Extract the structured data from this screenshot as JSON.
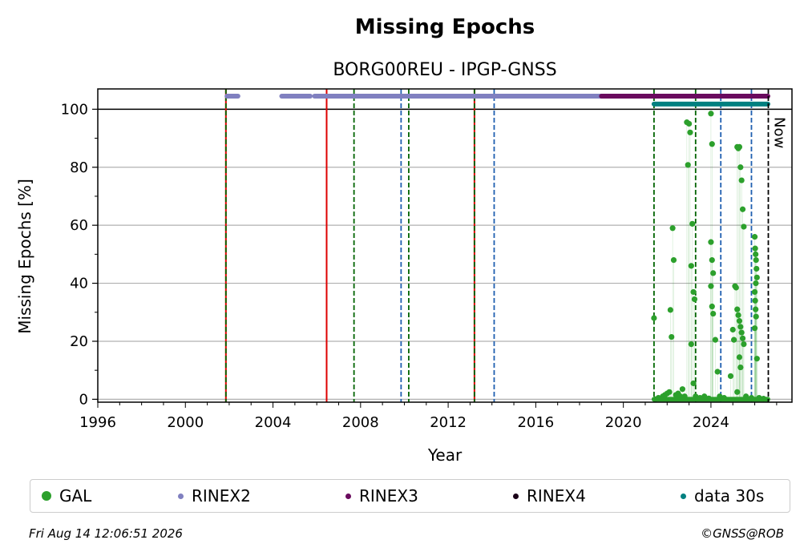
{
  "chart_data": {
    "type": "scatter",
    "title": "Missing Epochs",
    "subtitle": "BORG00REU - IPGP-GNSS",
    "xlabel": "Year",
    "ylabel": "Missing Epochs [%]",
    "xlim": [
      1996,
      2027.7
    ],
    "ylim": [
      -1,
      107
    ],
    "x_ticks": [
      1996,
      2000,
      2004,
      2008,
      2012,
      2016,
      2020,
      2024
    ],
    "y_ticks": [
      0,
      20,
      40,
      60,
      80,
      100
    ],
    "grid": "y",
    "legend_placement": "bottom",
    "now_label": "Now",
    "now_x": 2026.62,
    "hline_y": 100,
    "colors": {
      "GAL": "#2ca02c",
      "RINEX2": "#8080c0",
      "RINEX3": "#6a0b5e",
      "RINEX4": "#1a0018",
      "data30s": "#008080",
      "event_red": "#dd0000",
      "event_green": "#006400",
      "event_blue": "#1f5fb0",
      "now": "#000000"
    },
    "event_lines": [
      {
        "x": 2001.85,
        "color": "red",
        "style": "solid"
      },
      {
        "x": 2001.85,
        "color": "green",
        "style": "dashed"
      },
      {
        "x": 2006.45,
        "color": "red",
        "style": "solid"
      },
      {
        "x": 2007.7,
        "color": "green",
        "style": "dashed"
      },
      {
        "x": 2009.85,
        "color": "blue",
        "style": "dashed"
      },
      {
        "x": 2010.2,
        "color": "green",
        "style": "dashed"
      },
      {
        "x": 2013.2,
        "color": "red",
        "style": "solid"
      },
      {
        "x": 2013.2,
        "color": "green",
        "style": "dashed"
      },
      {
        "x": 2014.1,
        "color": "blue",
        "style": "dashed"
      },
      {
        "x": 2021.4,
        "color": "green",
        "style": "dashed"
      },
      {
        "x": 2023.3,
        "color": "green",
        "style": "dashed"
      },
      {
        "x": 2024.45,
        "color": "blue",
        "style": "dashed"
      },
      {
        "x": 2025.85,
        "color": "blue",
        "style": "dashed"
      }
    ],
    "rinex_bars": [
      {
        "name": "RINEX2",
        "y": 104.5,
        "segments": [
          [
            2001.9,
            2002.4
          ],
          [
            2004.4,
            2005.7
          ],
          [
            2005.9,
            2019.0
          ]
        ]
      },
      {
        "name": "RINEX3",
        "y": 104.5,
        "segments": [
          [
            2019.0,
            2026.6
          ]
        ]
      },
      {
        "name": "data30s",
        "y": 101.8,
        "segments": [
          [
            2021.4,
            2026.6
          ]
        ]
      }
    ],
    "series": [
      {
        "name": "GAL",
        "points": [
          [
            2021.4,
            28
          ],
          [
            2021.45,
            0
          ],
          [
            2021.6,
            0.5
          ],
          [
            2021.8,
            1
          ],
          [
            2021.9,
            1.5
          ],
          [
            2022.0,
            2
          ],
          [
            2022.1,
            2.5
          ],
          [
            2022.15,
            30.8
          ],
          [
            2022.2,
            21.5
          ],
          [
            2022.25,
            59
          ],
          [
            2022.3,
            48
          ],
          [
            2022.4,
            1.5
          ],
          [
            2022.5,
            2
          ],
          [
            2022.6,
            1
          ],
          [
            2022.7,
            3.5
          ],
          [
            2022.8,
            1
          ],
          [
            2022.9,
            95.5
          ],
          [
            2022.95,
            80.8
          ],
          [
            2023.0,
            95
          ],
          [
            2023.05,
            92
          ],
          [
            2023.1,
            46
          ],
          [
            2023.15,
            60.5
          ],
          [
            2023.2,
            37
          ],
          [
            2023.25,
            34.5
          ],
          [
            2023.1,
            19
          ],
          [
            2023.2,
            5.5
          ],
          [
            2023.3,
            1
          ],
          [
            2023.5,
            0.5
          ],
          [
            2023.7,
            1
          ],
          [
            2023.9,
            0.3
          ],
          [
            2024.0,
            98.5
          ],
          [
            2024.05,
            88
          ],
          [
            2024.0,
            54.2
          ],
          [
            2024.05,
            48
          ],
          [
            2024.1,
            43.5
          ],
          [
            2024.0,
            39
          ],
          [
            2024.05,
            32
          ],
          [
            2024.1,
            29.5
          ],
          [
            2024.2,
            20.5
          ],
          [
            2024.3,
            9.5
          ],
          [
            2024.4,
            1
          ],
          [
            2024.6,
            0.5
          ],
          [
            2024.9,
            8
          ],
          [
            2025.0,
            24
          ],
          [
            2025.05,
            20.5
          ],
          [
            2025.1,
            39
          ],
          [
            2025.15,
            38.5
          ],
          [
            2025.2,
            87
          ],
          [
            2025.25,
            86.5
          ],
          [
            2025.3,
            87
          ],
          [
            2025.35,
            80
          ],
          [
            2025.4,
            75.5
          ],
          [
            2025.45,
            65.5
          ],
          [
            2025.5,
            59.5
          ],
          [
            2025.2,
            31
          ],
          [
            2025.25,
            29
          ],
          [
            2025.3,
            27
          ],
          [
            2025.35,
            25
          ],
          [
            2025.4,
            23
          ],
          [
            2025.45,
            21
          ],
          [
            2025.5,
            19
          ],
          [
            2025.3,
            14.5
          ],
          [
            2025.35,
            11
          ],
          [
            2025.2,
            2.5
          ],
          [
            2025.6,
            1
          ],
          [
            2025.85,
            0.5
          ],
          [
            2026.0,
            56
          ],
          [
            2026.02,
            52
          ],
          [
            2026.04,
            50
          ],
          [
            2026.06,
            48
          ],
          [
            2026.08,
            45
          ],
          [
            2026.1,
            42
          ],
          [
            2026.05,
            40
          ],
          [
            2026.0,
            37
          ],
          [
            2026.02,
            34
          ],
          [
            2026.04,
            31
          ],
          [
            2026.06,
            28.5
          ],
          [
            2026.0,
            24.5
          ],
          [
            2026.1,
            14
          ],
          [
            2026.2,
            0.5
          ],
          [
            2026.4,
            0.2
          ]
        ]
      },
      {
        "name": "RINEX2",
        "points": []
      },
      {
        "name": "RINEX3",
        "points": []
      },
      {
        "name": "RINEX4",
        "points": []
      },
      {
        "name": "data 30s",
        "points": []
      }
    ]
  },
  "legend": [
    {
      "label": "GAL",
      "color": "#2ca02c",
      "size": 12
    },
    {
      "label": "RINEX2",
      "color": "#8080c0",
      "size": 7
    },
    {
      "label": "RINEX3",
      "color": "#6a0b5e",
      "size": 7
    },
    {
      "label": "RINEX4",
      "color": "#1a0018",
      "size": 7
    },
    {
      "label": "data 30s",
      "color": "#008080",
      "size": 7
    }
  ],
  "footer": {
    "timestamp": "Fri Aug 14 12:06:51 2026",
    "copyright": "©GNSS@ROB"
  }
}
